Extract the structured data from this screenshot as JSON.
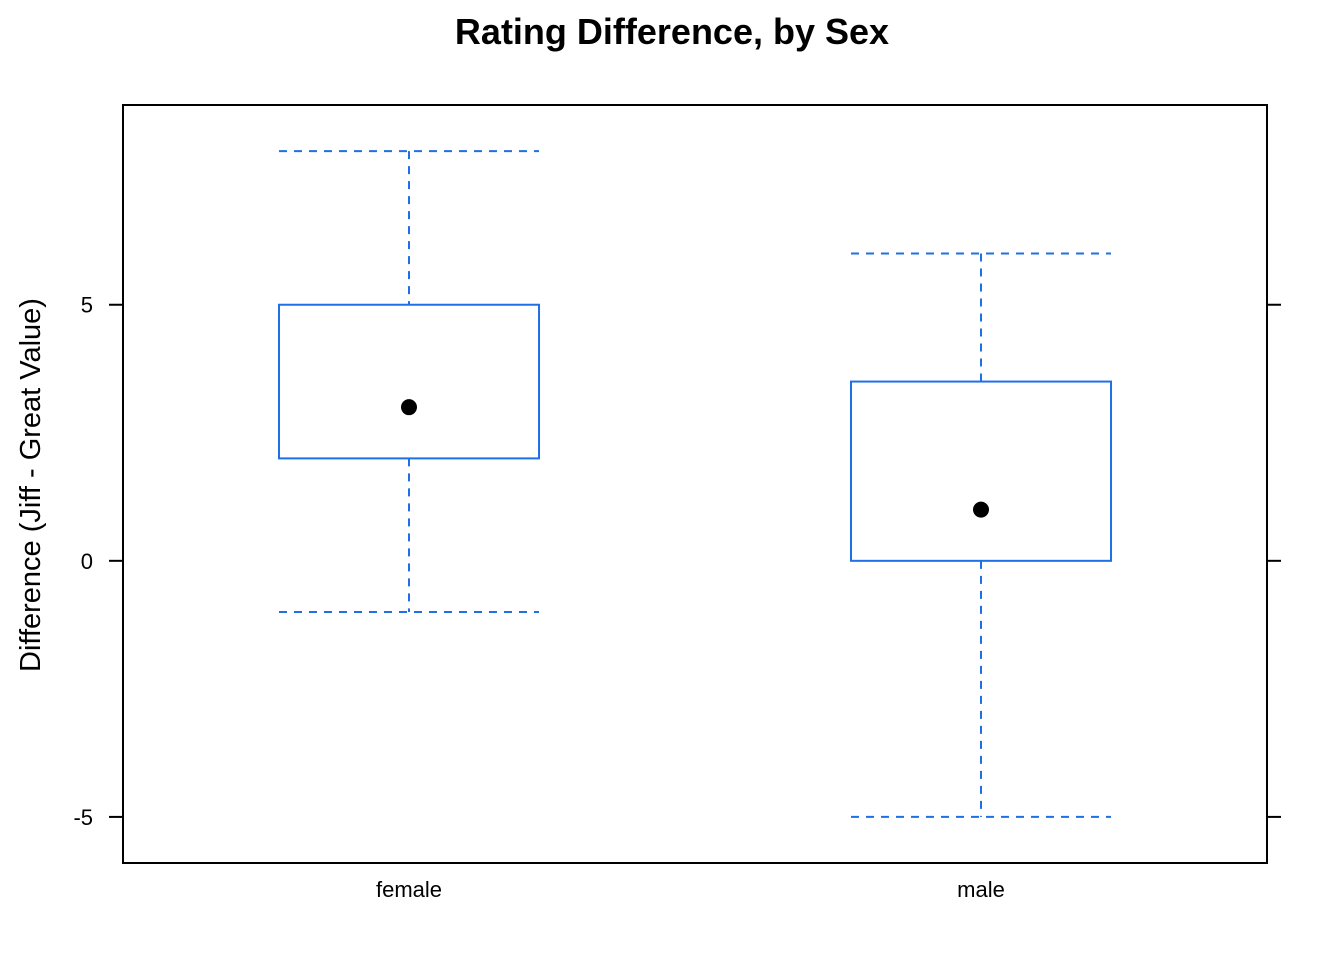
{
  "chart_data": {
    "type": "box",
    "title": "Rating Difference, by Sex",
    "xlabel": "",
    "ylabel": "Difference (Jiff - Great Value)",
    "categories": [
      "female",
      "male"
    ],
    "boxes": [
      {
        "category": "female",
        "whisker_low": -1,
        "q1": 2,
        "median": 3,
        "q3": 5,
        "whisker_high": 8
      },
      {
        "category": "male",
        "whisker_low": -5,
        "q1": 0,
        "median": 1,
        "q3": 3.5,
        "whisker_high": 6
      }
    ],
    "ylim": [
      -5.9,
      8.9
    ],
    "yticks": [
      -5,
      0,
      5
    ],
    "ytick_labels": [
      "-5",
      "0",
      "5"
    ],
    "box_color": "#1f6fe5",
    "median_color": "#000000",
    "whisker_style": "dashed",
    "grid": false,
    "legend": "none"
  }
}
